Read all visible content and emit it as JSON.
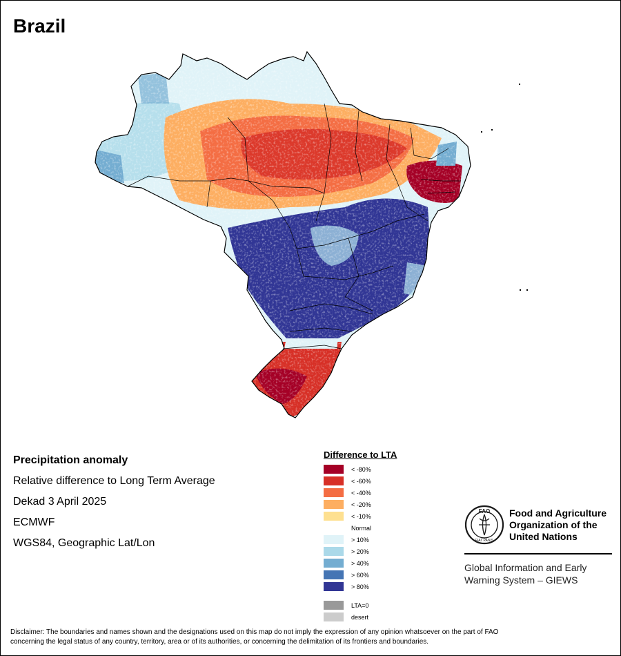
{
  "map": {
    "title": "Brazil"
  },
  "info": {
    "heading": "Precipitation anomaly",
    "subheading": "Relative difference to Long Term Average",
    "period": "Dekad 3 April 2025",
    "source": "ECMWF",
    "projection": "WGS84, Geographic Lat/Lon"
  },
  "legend": {
    "title": "Difference to LTA",
    "items": [
      {
        "label": "< -80%",
        "color": "#a50026"
      },
      {
        "label": "< -60%",
        "color": "#d73027"
      },
      {
        "label": "< -40%",
        "color": "#f46d43"
      },
      {
        "label": "< -20%",
        "color": "#fdae61"
      },
      {
        "label": "< -10%",
        "color": "#fee090"
      },
      {
        "label": "Normal",
        "color": "#ffffff"
      },
      {
        "label": "> 10%",
        "color": "#e0f3f8"
      },
      {
        "label": "> 20%",
        "color": "#abd9e9"
      },
      {
        "label": "> 40%",
        "color": "#74add1"
      },
      {
        "label": "> 60%",
        "color": "#4575b4"
      },
      {
        "label": "> 80%",
        "color": "#313695"
      }
    ],
    "extra_items": [
      {
        "label": "LTA=0",
        "color": "#999999"
      },
      {
        "label": "desert",
        "color": "#cccccc"
      }
    ]
  },
  "org": {
    "logo_letters": "FAO",
    "logo_motto": "FIAT PANIS",
    "name_line1": "Food and Agriculture",
    "name_line2": "Organization of the",
    "name_line3": "United Nations",
    "system_line1": "Global Information and Early",
    "system_line2": "Warning System – GIEWS"
  },
  "disclaimer": {
    "line1": "Disclaimer: The boundaries and names shown and the designations used on this map do not imply the expression of any opinion whatsoever on the part of FAO",
    "line2": "concerning the legal status of any country, territory, area or of its authorities, or concerning the delimitation of its frontiers and boundaries."
  }
}
